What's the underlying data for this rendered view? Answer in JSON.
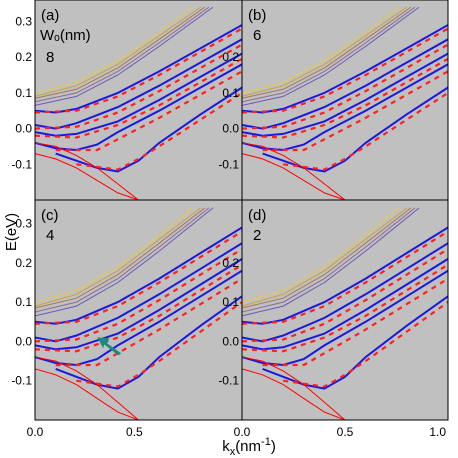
{
  "chart_data": {
    "type": "line",
    "ylabel": "E(eV)",
    "xlabel_main": "k",
    "xlabel_sub": "x",
    "xlabel_unit_open": "(nm",
    "xlabel_unit_sup": "-1",
    "xlabel_unit_close": ")",
    "x_ticks": [
      "0.0",
      "0.5",
      "0.0",
      "0.5",
      "1.0"
    ],
    "y_ticks_left": [
      "0.3",
      "0.2",
      "0.1",
      "0.0",
      "-0.1"
    ],
    "y_ticks_right": [
      "0.2",
      "0.1",
      "0.0",
      "-0.1"
    ],
    "xlim": [
      0,
      0.5
    ],
    "ylim": [
      -0.2,
      0.36
    ],
    "colors": {
      "background": "#c0c0c0",
      "blue_bands": "#1a1adc",
      "red_dashed": "#ff2020",
      "red_parabola": "#ff0000",
      "upper_bands": [
        "#e6c84a",
        "#c8a040",
        "#a87850",
        "#8a6aa0",
        "#6a5ab8"
      ],
      "arrow": "#1a8a7a"
    },
    "panels": [
      {
        "id": "a",
        "label": "(a)",
        "param_label": "Wₒ(nm)",
        "param_value": "8"
      },
      {
        "id": "b",
        "label": "(b)",
        "param_label": "",
        "param_value": "6"
      },
      {
        "id": "c",
        "label": "(c)",
        "param_label": "",
        "param_value": "4"
      },
      {
        "id": "d",
        "label": "(d)",
        "param_label": "",
        "param_value": "2"
      }
    ],
    "series": [
      {
        "style": "solid-blue",
        "points": [
          [
            0,
            0.05
          ],
          [
            0.05,
            0.045
          ],
          [
            0.1,
            0.055
          ],
          [
            0.2,
            0.1
          ],
          [
            0.3,
            0.16
          ],
          [
            0.4,
            0.225
          ],
          [
            0.5,
            0.29
          ]
        ]
      },
      {
        "style": "solid-blue",
        "points": [
          [
            0,
            0.01
          ],
          [
            0.05,
            0.0
          ],
          [
            0.1,
            0.015
          ],
          [
            0.2,
            0.06
          ],
          [
            0.3,
            0.12
          ],
          [
            0.4,
            0.185
          ],
          [
            0.5,
            0.25
          ]
        ]
      },
      {
        "style": "solid-blue",
        "points": [
          [
            0,
            -0.01
          ],
          [
            0.05,
            -0.02
          ],
          [
            0.1,
            -0.015
          ],
          [
            0.2,
            0.02
          ],
          [
            0.3,
            0.08
          ],
          [
            0.4,
            0.145
          ],
          [
            0.5,
            0.21
          ]
        ]
      },
      {
        "style": "solid-blue",
        "points": [
          [
            0,
            -0.04
          ],
          [
            0.05,
            -0.055
          ],
          [
            0.1,
            -0.06
          ],
          [
            0.15,
            -0.045
          ],
          [
            0.2,
            -0.01
          ],
          [
            0.3,
            0.05
          ],
          [
            0.4,
            0.115
          ],
          [
            0.5,
            0.18
          ]
        ]
      },
      {
        "style": "solid-blue",
        "points": [
          [
            0.05,
            -0.07
          ],
          [
            0.1,
            -0.09
          ],
          [
            0.15,
            -0.11
          ],
          [
            0.2,
            -0.12
          ],
          [
            0.25,
            -0.09
          ],
          [
            0.3,
            -0.04
          ],
          [
            0.4,
            0.04
          ],
          [
            0.5,
            0.115
          ]
        ]
      },
      {
        "style": "dashed-red",
        "points": [
          [
            0,
            0.045
          ],
          [
            0.1,
            0.05
          ],
          [
            0.2,
            0.09
          ],
          [
            0.3,
            0.15
          ],
          [
            0.4,
            0.215
          ],
          [
            0.5,
            0.28
          ]
        ]
      },
      {
        "style": "dashed-red",
        "points": [
          [
            0,
            0.0
          ],
          [
            0.1,
            0.005
          ],
          [
            0.2,
            0.045
          ],
          [
            0.3,
            0.105
          ],
          [
            0.4,
            0.17
          ],
          [
            0.5,
            0.235
          ]
        ]
      },
      {
        "style": "dashed-red",
        "points": [
          [
            0,
            -0.02
          ],
          [
            0.1,
            -0.025
          ],
          [
            0.2,
            0.01
          ],
          [
            0.3,
            0.065
          ],
          [
            0.4,
            0.13
          ],
          [
            0.5,
            0.195
          ]
        ]
      },
      {
        "style": "dashed-red",
        "points": [
          [
            0.05,
            -0.06
          ],
          [
            0.15,
            -0.06
          ],
          [
            0.2,
            -0.03
          ],
          [
            0.3,
            0.03
          ],
          [
            0.4,
            0.095
          ],
          [
            0.5,
            0.16
          ]
        ]
      },
      {
        "style": "dashed-red",
        "points": [
          [
            0.1,
            -0.1
          ],
          [
            0.2,
            -0.115
          ],
          [
            0.25,
            -0.085
          ],
          [
            0.3,
            -0.05
          ],
          [
            0.4,
            0.025
          ],
          [
            0.5,
            0.1
          ]
        ]
      },
      {
        "style": "solid-red",
        "points": [
          [
            0,
            -0.07
          ],
          [
            0.05,
            -0.085
          ],
          [
            0.1,
            -0.11
          ],
          [
            0.15,
            -0.145
          ],
          [
            0.2,
            -0.18
          ],
          [
            0.25,
            -0.2
          ]
        ]
      },
      {
        "style": "solid-red",
        "points": [
          [
            0,
            -0.04
          ],
          [
            0.05,
            -0.05
          ],
          [
            0.1,
            -0.075
          ],
          [
            0.15,
            -0.11
          ],
          [
            0.2,
            -0.155
          ],
          [
            0.25,
            -0.2
          ]
        ]
      },
      {
        "style": "upper",
        "points": [
          [
            0,
            0.1
          ],
          [
            0.1,
            0.13
          ],
          [
            0.2,
            0.19
          ],
          [
            0.3,
            0.27
          ],
          [
            0.38,
            0.34
          ]
        ]
      },
      {
        "style": "upper",
        "points": [
          [
            0,
            0.09
          ],
          [
            0.1,
            0.12
          ],
          [
            0.2,
            0.18
          ],
          [
            0.3,
            0.26
          ],
          [
            0.4,
            0.34
          ]
        ]
      },
      {
        "style": "upper",
        "points": [
          [
            0,
            0.085
          ],
          [
            0.1,
            0.11
          ],
          [
            0.2,
            0.17
          ],
          [
            0.3,
            0.25
          ],
          [
            0.41,
            0.34
          ]
        ]
      },
      {
        "style": "upper",
        "points": [
          [
            0,
            0.075
          ],
          [
            0.1,
            0.1
          ],
          [
            0.2,
            0.16
          ],
          [
            0.3,
            0.24
          ],
          [
            0.42,
            0.34
          ]
        ]
      },
      {
        "style": "upper",
        "points": [
          [
            0,
            0.065
          ],
          [
            0.1,
            0.09
          ],
          [
            0.2,
            0.15
          ],
          [
            0.3,
            0.23
          ],
          [
            0.43,
            0.34
          ]
        ]
      }
    ]
  }
}
